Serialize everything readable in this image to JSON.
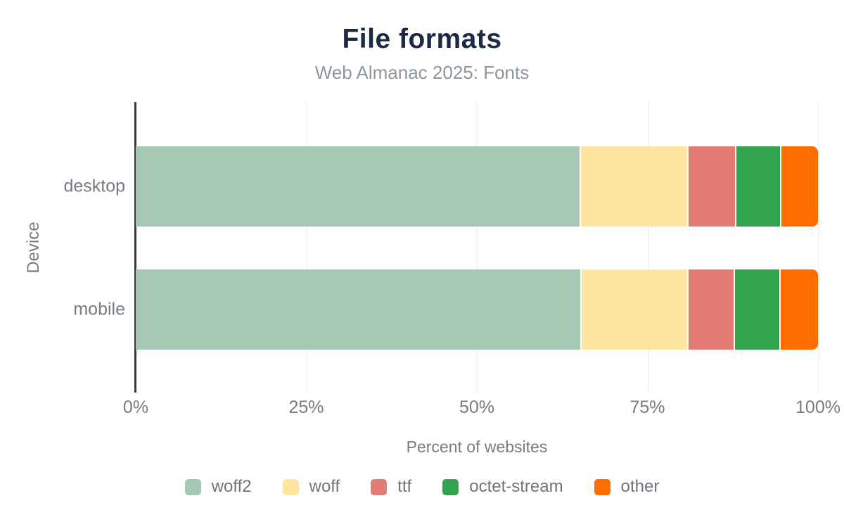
{
  "header": {
    "title": "File formats",
    "subtitle": "Web Almanac 2025: Fonts"
  },
  "colors": {
    "title_text": "#1c2947",
    "subtitle_text": "#8f969c",
    "axis_text": "#767c82",
    "legend_text": "#6e747a",
    "gridline": "#e9eaeb",
    "axis_line": "#3a3b3d",
    "background": "#ffffff"
  },
  "chart_data": {
    "type": "bar",
    "orientation": "horizontal",
    "stacked": true,
    "title": "File formats",
    "subtitle": "Web Almanac 2025: Fonts",
    "xlabel": "Percent of websites",
    "ylabel": "Device",
    "xlim": [
      0,
      100
    ],
    "grid": true,
    "legend_position": "bottom",
    "categories": [
      "desktop",
      "mobile"
    ],
    "x_ticks": [
      {
        "value": 0,
        "label": "0%"
      },
      {
        "value": 25,
        "label": "25%"
      },
      {
        "value": 50,
        "label": "50%"
      },
      {
        "value": 75,
        "label": "75%"
      },
      {
        "value": 100,
        "label": "100%"
      }
    ],
    "series": [
      {
        "name": "woff2",
        "color": "#a5c8b4",
        "values": [
          65.3,
          65.4
        ]
      },
      {
        "name": "woff",
        "color": "#fee5a0",
        "values": [
          15.7,
          15.6
        ]
      },
      {
        "name": "ttf",
        "color": "#e37d74",
        "values": [
          7.0,
          6.8
        ]
      },
      {
        "name": "octet-stream",
        "color": "#31a44f",
        "values": [
          6.6,
          6.7
        ]
      },
      {
        "name": "other",
        "color": "#ff6d00",
        "values": [
          5.4,
          5.5
        ]
      }
    ]
  }
}
